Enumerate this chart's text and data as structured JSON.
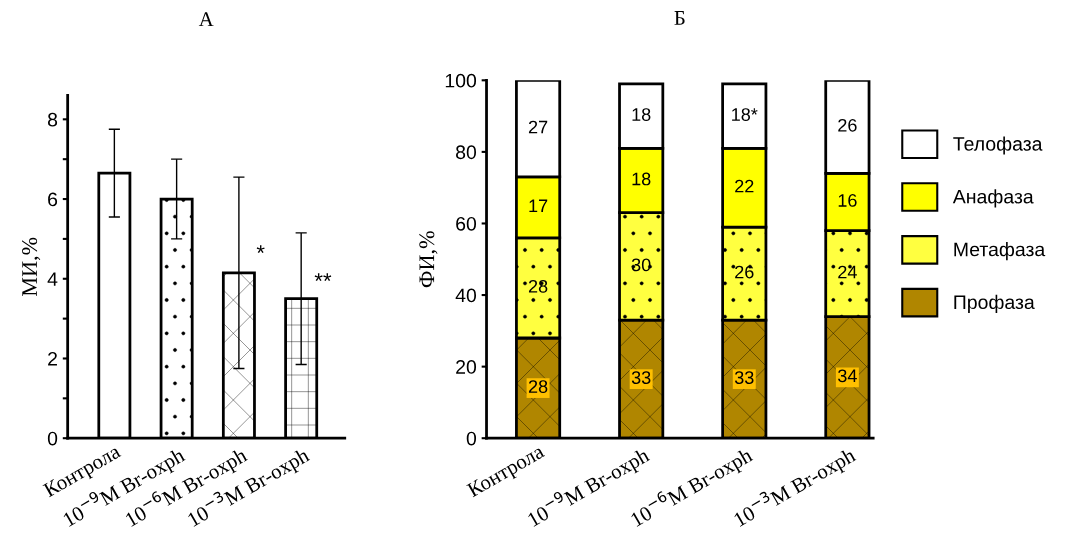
{
  "chart_data": [
    {
      "type": "bar",
      "title": "А",
      "ylabel": "МИ,%",
      "categories": [
        "Контрола",
        "10$^{−9}$M Br-oxph",
        "10$^{−6}$M Br-oxph",
        "10$^{−3}$M Br-oxph"
      ],
      "values": [
        6.65,
        6.0,
        4.15,
        3.5
      ],
      "errors": [
        1.1,
        1.0,
        2.4,
        1.65
      ],
      "colors": [
        "#ffffff",
        "#ffffff",
        "#ffffff",
        "#ffffff"
      ],
      "ylim": [
        0,
        8.6
      ],
      "yticks": [
        0,
        {
          "value": 1,
          "label": null
        },
        2,
        {
          "value": 3,
          "label": null
        },
        4,
        {
          "value": 5,
          "label": null
        },
        6,
        {
          "value": 7,
          "label": null
        },
        8
      ],
      "annotations": [
        {
          "text": "*",
          "x": "10$^{−6}$M Br-oxph",
          "y": 4.6
        },
        {
          "text": "**",
          "x": "10$^{−3}$M Br-oxph",
          "y": 3.9
        }
      ],
      "grid": false,
      "legend": false
    },
    {
      "type": "bar",
      "stacked": true,
      "title": "Б",
      "ylabel": "ФИ,%",
      "categories": [
        "Контрола",
        "10$^{−9}$M Br-oxph",
        "10$^{−6}$M Br-oxph",
        "10$^{−3}$M Br-oxph"
      ],
      "series": [
        {
          "name": "Профаза",
          "color": "#b08600",
          "values": [
            28,
            33,
            33,
            34
          ],
          "value_labels": [
            "28",
            "33",
            "33",
            "34"
          ]
        },
        {
          "name": "Метафаза",
          "color": "#ffff40",
          "values": [
            28,
            30,
            26,
            24
          ],
          "value_labels": [
            "28",
            "30",
            "26",
            "24"
          ]
        },
        {
          "name": "Анафаза",
          "color": "#ffff00",
          "values": [
            17,
            18,
            22,
            16
          ],
          "value_labels": [
            "17",
            "18",
            "22",
            "16"
          ]
        },
        {
          "name": "Телофаза",
          "color": "#ffffff",
          "values": [
            27,
            18,
            18,
            26
          ],
          "value_labels": [
            "27",
            "18",
            "18*",
            "26"
          ]
        }
      ],
      "ylim": [
        0,
        100
      ],
      "yticks": [
        0,
        20,
        40,
        60,
        80,
        100
      ],
      "grid": false,
      "legend": "right"
    }
  ]
}
